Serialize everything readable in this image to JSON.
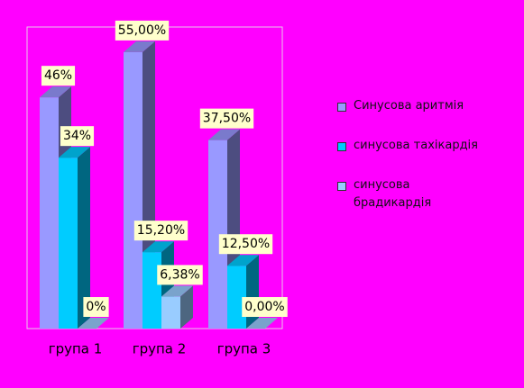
{
  "chart_data": {
    "type": "bar3d",
    "categories": [
      "група 1",
      "група 2",
      "група 3"
    ],
    "series": [
      {
        "name": "Синусова аритмія",
        "color": "#9999ff",
        "values": [
          46,
          55,
          37.5
        ],
        "value_labels": [
          "46%",
          "55,00%",
          "37,50%"
        ]
      },
      {
        "name": "синусова тахікардія",
        "color": "#00ccff",
        "values": [
          34,
          15.2,
          12.5
        ],
        "value_labels": [
          "34%",
          "15,20%",
          "12,50%"
        ]
      },
      {
        "name": "синусова брадикардія",
        "color": "#99ccff",
        "values": [
          0,
          6.38,
          0
        ],
        "value_labels": [
          "0%",
          "6,38%",
          "0,00%"
        ]
      }
    ],
    "ylim": [
      0,
      60
    ],
    "legend": "right",
    "background": "#ff00ff",
    "label_background": "#ffffcc"
  }
}
